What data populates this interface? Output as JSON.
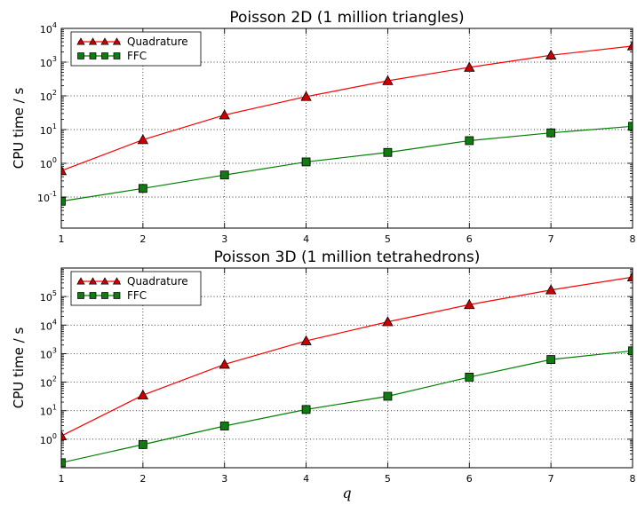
{
  "chart_data": [
    {
      "type": "line",
      "title": "Poisson 2D (1 million triangles)",
      "xlabel": "",
      "ylabel": "CPU time / s",
      "yscale": "log",
      "xlim": [
        1,
        8
      ],
      "ylim": [
        0.012,
        10000
      ],
      "grid": true,
      "legend_position": "top-left",
      "x": [
        1,
        2,
        3,
        4,
        5,
        6,
        7,
        8
      ],
      "x_tick_labels": [
        "1",
        "2",
        "3",
        "4",
        "5",
        "6",
        "7",
        "8"
      ],
      "y_tick_labels": [
        {
          "base": "10",
          "exp": "-1",
          "value": 0.1
        },
        {
          "base": "10",
          "exp": "0",
          "value": 1
        },
        {
          "base": "10",
          "exp": "1",
          "value": 10
        },
        {
          "base": "10",
          "exp": "2",
          "value": 100
        },
        {
          "base": "10",
          "exp": "3",
          "value": 1000
        },
        {
          "base": "10",
          "exp": "4",
          "value": 10000
        }
      ],
      "series": [
        {
          "name": "Quadrature",
          "color": "#ff0000",
          "marker_color": "#cc0000",
          "marker": "triangle",
          "values": [
            0.6,
            5,
            27,
            95,
            280,
            700,
            1600,
            3000
          ]
        },
        {
          "name": "FFC",
          "color": "#008000",
          "marker_color": "#117a11",
          "marker": "square",
          "values": [
            0.075,
            0.18,
            0.45,
            1.1,
            2.1,
            4.7,
            8,
            12.5
          ]
        }
      ]
    },
    {
      "type": "line",
      "title": "Poisson 3D (1 million tetrahedrons)",
      "xlabel": "q",
      "ylabel": "CPU time / s",
      "yscale": "log",
      "xlim": [
        1,
        8
      ],
      "ylim": [
        0.1,
        1000000
      ],
      "grid": true,
      "legend_position": "top-left",
      "x": [
        1,
        2,
        3,
        4,
        5,
        6,
        7,
        8
      ],
      "x_tick_labels": [
        "1",
        "2",
        "3",
        "4",
        "5",
        "6",
        "7",
        "8"
      ],
      "y_tick_labels": [
        {
          "base": "10",
          "exp": "0",
          "value": 1
        },
        {
          "base": "10",
          "exp": "1",
          "value": 10
        },
        {
          "base": "10",
          "exp": "2",
          "value": 100
        },
        {
          "base": "10",
          "exp": "3",
          "value": 1000
        },
        {
          "base": "10",
          "exp": "4",
          "value": 10000
        },
        {
          "base": "10",
          "exp": "5",
          "value": 100000
        }
      ],
      "series": [
        {
          "name": "Quadrature",
          "color": "#ff0000",
          "marker_color": "#cc0000",
          "marker": "triangle",
          "values": [
            1.3,
            35,
            420,
            2800,
            13000,
            52000,
            170000,
            480000
          ]
        },
        {
          "name": "FFC",
          "color": "#008000",
          "marker_color": "#117a11",
          "marker": "square",
          "values": [
            0.15,
            0.65,
            2.9,
            11,
            32,
            150,
            620,
            1250
          ]
        }
      ]
    }
  ]
}
